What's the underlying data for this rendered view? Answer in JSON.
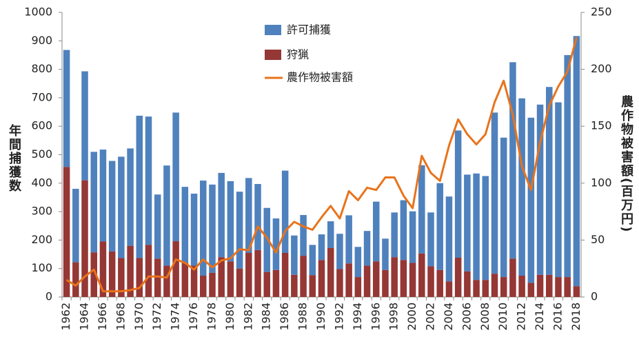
{
  "chart_data": {
    "type": "bar",
    "stacked": true,
    "categories": [
      "1962",
      null,
      "1964",
      null,
      "1966",
      null,
      "1968",
      null,
      "1970",
      null,
      "1972",
      null,
      "1974",
      null,
      "1976",
      null,
      "1978",
      null,
      "1980",
      null,
      "1982",
      null,
      "1984",
      null,
      "1986",
      null,
      "1988",
      null,
      "1990",
      null,
      "1992",
      null,
      "1994",
      null,
      "1996",
      null,
      "1998",
      null,
      "2000",
      null,
      "2002",
      null,
      "2004",
      null,
      "2006",
      null,
      "2008",
      null,
      "2010",
      null,
      "2012",
      null,
      "2014",
      null,
      "2016",
      null,
      "2018"
    ],
    "series": [
      {
        "name": "狩猟",
        "color": "#953735",
        "values": [
          457,
          122,
          410,
          157,
          195,
          160,
          137,
          180,
          137,
          183,
          135,
          110,
          196,
          120,
          110,
          75,
          85,
          140,
          125,
          100,
          155,
          165,
          88,
          95,
          155,
          78,
          145,
          77,
          130,
          172,
          98,
          118,
          70,
          110,
          125,
          95,
          140,
          130,
          120,
          153,
          108,
          95,
          55,
          138,
          90,
          60,
          60,
          82,
          70,
          135,
          75,
          50,
          78,
          78,
          70,
          70,
          38
        ]
      },
      {
        "name": "許可捕獲",
        "color": "#4f81bd",
        "values": [
          411,
          258,
          383,
          353,
          323,
          318,
          356,
          342,
          500,
          451,
          225,
          352,
          452,
          267,
          253,
          334,
          310,
          296,
          282,
          270,
          263,
          232,
          225,
          181,
          289,
          138,
          143,
          106,
          90,
          94,
          124,
          169,
          106,
          122,
          210,
          110,
          157,
          210,
          181,
          310,
          189,
          305,
          298,
          447,
          340,
          374,
          365,
          566,
          490,
          690,
          623,
          580,
          598,
          660,
          614,
          780,
          879
        ]
      },
      {
        "name": "農作物被害額",
        "type": "line",
        "axis": "y2",
        "color": "#e8731b",
        "values": [
          15,
          10,
          18,
          24,
          5,
          5,
          5,
          6,
          8,
          18,
          18,
          17,
          33,
          30,
          24,
          33,
          26,
          32,
          34,
          42,
          41,
          62,
          52,
          39,
          58,
          66,
          62,
          59,
          70,
          80,
          69,
          93,
          85,
          96,
          94,
          105,
          105,
          89,
          78,
          124,
          109,
          102,
          133,
          156,
          143,
          134,
          143,
          171,
          190,
          160,
          115,
          94,
          136,
          168,
          185,
          198,
          228
        ]
      }
    ],
    "y_label": "年間捕獲数",
    "y2_label": "農作物被害額(百万円)",
    "ylim": [
      0,
      1000
    ],
    "yticks": [
      0,
      100,
      200,
      300,
      400,
      500,
      600,
      700,
      800,
      900,
      1000
    ],
    "y2lim": [
      0,
      250
    ],
    "y2ticks": [
      0,
      50,
      100,
      150,
      200,
      250
    ],
    "grid": false,
    "legend": "top"
  }
}
